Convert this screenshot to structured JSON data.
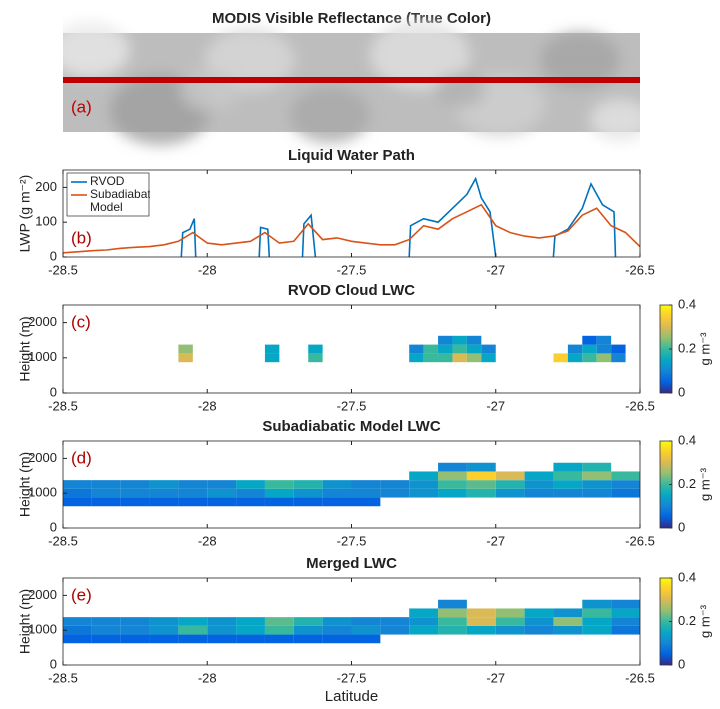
{
  "chart_data": [
    {
      "type": "image",
      "title": "MODIS Visible Reflectance (True Color)",
      "annotation": "(a)",
      "line_color": "#c00000"
    },
    {
      "type": "line",
      "title": "Liquid Water Path",
      "ylabel": "LWP (g m⁻²)",
      "annotation": "(b)",
      "legend": "upper left",
      "xlim": [
        -28.5,
        -26.5
      ],
      "xticks": [
        -28.5,
        -28,
        -27.5,
        -27,
        -26.5
      ],
      "ylim": [
        0,
        250
      ],
      "yticks": [
        0,
        100,
        200
      ],
      "series": [
        {
          "name": "RVOD",
          "color": "#0072bd",
          "x": [
            -28.09,
            -28.085,
            -28.06,
            -28.045,
            -28.04,
            -28.035,
            -27.82,
            -27.815,
            -27.79,
            -27.785,
            -27.78,
            -27.67,
            -27.665,
            -27.64,
            -27.625,
            -27.62,
            -27.3,
            -27.295,
            -27.25,
            -27.2,
            -27.15,
            -27.1,
            -27.07,
            -27.05,
            -27.02,
            -27.0,
            -26.99,
            -26.8,
            -26.795,
            -26.75,
            -26.7,
            -26.67,
            -26.63,
            -26.59,
            -26.585
          ],
          "values": [
            0,
            70,
            80,
            110,
            0,
            null,
            0,
            85,
            80,
            0,
            null,
            0,
            95,
            120,
            0,
            null,
            0,
            90,
            110,
            100,
            140,
            180,
            225,
            170,
            130,
            0,
            null,
            0,
            60,
            80,
            140,
            210,
            150,
            130,
            0
          ]
        },
        {
          "name": "Subadiabatic Model",
          "color": "#d95319",
          "x": [
            -28.5,
            -28.45,
            -28.4,
            -28.35,
            -28.3,
            -28.25,
            -28.2,
            -28.15,
            -28.1,
            -28.05,
            -28,
            -27.95,
            -27.9,
            -27.85,
            -27.8,
            -27.75,
            -27.7,
            -27.65,
            -27.6,
            -27.55,
            -27.5,
            -27.45,
            -27.4,
            -27.35,
            -27.3,
            -27.25,
            -27.2,
            -27.15,
            -27.1,
            -27.05,
            -27,
            -26.95,
            -26.9,
            -26.85,
            -26.8,
            -26.75,
            -26.7,
            -26.65,
            -26.6,
            -26.55,
            -26.5
          ],
          "values": [
            12,
            15,
            18,
            20,
            25,
            28,
            30,
            35,
            45,
            70,
            40,
            35,
            40,
            45,
            70,
            40,
            45,
            95,
            50,
            55,
            45,
            40,
            35,
            35,
            50,
            90,
            80,
            110,
            130,
            150,
            90,
            70,
            60,
            55,
            60,
            75,
            120,
            140,
            90,
            70,
            30
          ]
        }
      ]
    },
    {
      "type": "heatmap",
      "title": "RVOD Cloud LWC",
      "ylabel": "Height (m)",
      "annotation": "(c)",
      "colormap": "parula",
      "xlim": [
        -28.5,
        -26.5
      ],
      "xticks": [
        -28.5,
        -28,
        -27.5,
        -27,
        -26.5
      ],
      "ylim": [
        0,
        2500
      ],
      "yticks": [
        0,
        1000,
        2000
      ],
      "clim": [
        0,
        0.4
      ],
      "cticks": [
        0,
        0.2,
        0.4
      ],
      "colorbar_label": "g m⁻³",
      "xbins": [
        -28.5,
        -28.45,
        -28.4,
        -28.35,
        -28.3,
        -28.25,
        -28.2,
        -28.15,
        -28.1,
        -28.05,
        -28,
        -27.95,
        -27.9,
        -27.85,
        -27.8,
        -27.75,
        -27.7,
        -27.65,
        -27.6,
        -27.55,
        -27.5,
        -27.45,
        -27.4,
        -27.35,
        -27.3,
        -27.25,
        -27.2,
        -27.15,
        -27.1,
        -27.05,
        -27,
        -26.95,
        -26.9,
        -26.85,
        -26.8,
        -26.75,
        -26.7,
        -26.65,
        -26.6,
        -26.55,
        -26.5
      ],
      "ybins": [
        875,
        1125,
        1375,
        1625
      ],
      "values": [
        [
          null,
          null,
          null,
          null,
          null,
          null,
          null,
          null,
          0.3,
          null,
          null,
          null,
          null,
          null,
          0.15,
          null,
          null,
          0.2,
          null,
          null,
          null,
          null,
          null,
          null,
          0.15,
          0.2,
          0.2,
          0.3,
          0.25,
          0.15,
          null,
          null,
          null,
          null,
          0.35,
          0.15,
          0.2,
          0.25,
          0.1,
          null
        ],
        [
          null,
          null,
          null,
          null,
          null,
          null,
          null,
          null,
          0.25,
          null,
          null,
          null,
          null,
          null,
          0.15,
          null,
          null,
          0.15,
          null,
          null,
          null,
          null,
          null,
          null,
          0.1,
          0.2,
          0.15,
          0.2,
          0.15,
          0.1,
          null,
          null,
          null,
          null,
          null,
          0.1,
          0.15,
          0.1,
          0.05,
          null
        ],
        [
          null,
          null,
          null,
          null,
          null,
          null,
          null,
          null,
          null,
          null,
          null,
          null,
          null,
          null,
          null,
          null,
          null,
          null,
          null,
          null,
          null,
          null,
          null,
          null,
          null,
          null,
          0.1,
          0.15,
          0.1,
          null,
          null,
          null,
          null,
          null,
          null,
          null,
          0.05,
          0.1,
          null,
          null
        ]
      ]
    },
    {
      "type": "heatmap",
      "title": "Subadiabatic Model LWC",
      "ylabel": "Height (m)",
      "annotation": "(d)",
      "colormap": "parula",
      "xlim": [
        -28.5,
        -26.5
      ],
      "xticks": [
        -28.5,
        -28,
        -27.5,
        -27,
        -26.5
      ],
      "ylim": [
        0,
        2500
      ],
      "yticks": [
        0,
        1000,
        2000
      ],
      "clim": [
        0,
        0.4
      ],
      "cticks": [
        0,
        0.2,
        0.4
      ],
      "colorbar_label": "g m⁻³",
      "xbins": [
        -28.5,
        -28.4,
        -28.3,
        -28.2,
        -28.1,
        -28,
        -27.9,
        -27.8,
        -27.7,
        -27.6,
        -27.5,
        -27.4,
        -27.3,
        -27.2,
        -27.1,
        -27,
        -26.9,
        -26.8,
        -26.7,
        -26.6,
        -26.5
      ],
      "ybins": [
        625,
        875,
        1125,
        1375,
        1625,
        1875
      ],
      "values": [
        [
          0.05,
          0.05,
          0.05,
          0.05,
          0.05,
          0.05,
          0.05,
          0.05,
          0.05,
          0.05,
          0.05,
          null,
          null,
          null,
          null,
          null,
          null,
          null,
          null,
          null
        ],
        [
          0.08,
          0.1,
          0.1,
          0.1,
          0.1,
          0.12,
          0.1,
          0.15,
          0.12,
          0.1,
          0.1,
          0.1,
          0.12,
          0.15,
          0.18,
          0.12,
          0.1,
          0.1,
          0.1,
          0.08
        ],
        [
          0.1,
          0.1,
          0.1,
          0.12,
          0.1,
          0.1,
          0.15,
          0.2,
          0.18,
          0.12,
          0.1,
          0.1,
          0.12,
          0.2,
          0.22,
          0.18,
          0.12,
          0.15,
          0.12,
          0.1
        ],
        [
          null,
          null,
          null,
          null,
          null,
          null,
          null,
          null,
          null,
          null,
          null,
          null,
          0.15,
          0.25,
          0.35,
          0.3,
          0.15,
          0.2,
          0.25,
          0.2
        ],
        [
          null,
          null,
          null,
          null,
          null,
          null,
          null,
          null,
          null,
          null,
          null,
          null,
          null,
          0.1,
          0.12,
          null,
          null,
          0.15,
          0.18,
          null
        ]
      ]
    },
    {
      "type": "heatmap",
      "title": "Merged LWC",
      "ylabel": "Height (m)",
      "xlabel": "Latitude",
      "annotation": "(e)",
      "colormap": "parula",
      "xlim": [
        -28.5,
        -26.5
      ],
      "xticks": [
        -28.5,
        -28,
        -27.5,
        -27,
        -26.5
      ],
      "ylim": [
        0,
        2500
      ],
      "yticks": [
        0,
        1000,
        2000
      ],
      "clim": [
        0,
        0.4
      ],
      "cticks": [
        0,
        0.2,
        0.4
      ],
      "colorbar_label": "g m⁻³",
      "xbins": [
        -28.5,
        -28.4,
        -28.3,
        -28.2,
        -28.1,
        -28,
        -27.9,
        -27.8,
        -27.7,
        -27.6,
        -27.5,
        -27.4,
        -27.3,
        -27.2,
        -27.1,
        -27,
        -26.9,
        -26.8,
        -26.7,
        -26.6,
        -26.5
      ],
      "ybins": [
        625,
        875,
        1125,
        1375,
        1625,
        1875
      ],
      "values": [
        [
          0.05,
          0.05,
          0.05,
          0.05,
          0.05,
          0.05,
          0.05,
          0.05,
          0.05,
          0.05,
          0.05,
          null,
          null,
          null,
          null,
          null,
          null,
          null,
          null,
          null
        ],
        [
          0.08,
          0.1,
          0.1,
          0.12,
          0.2,
          0.12,
          0.15,
          0.2,
          0.12,
          0.1,
          0.12,
          0.1,
          0.15,
          0.18,
          0.15,
          0.12,
          0.1,
          0.12,
          0.15,
          0.08
        ],
        [
          0.1,
          0.1,
          0.1,
          0.12,
          0.15,
          0.12,
          0.15,
          0.22,
          0.18,
          0.12,
          0.1,
          0.1,
          0.12,
          0.2,
          0.3,
          0.2,
          0.12,
          0.25,
          0.15,
          0.1
        ],
        [
          null,
          null,
          null,
          null,
          null,
          null,
          null,
          null,
          null,
          null,
          null,
          null,
          0.15,
          0.25,
          0.3,
          0.25,
          0.15,
          0.12,
          0.2,
          0.15
        ],
        [
          null,
          null,
          null,
          null,
          null,
          null,
          null,
          null,
          null,
          null,
          null,
          null,
          null,
          0.1,
          null,
          null,
          null,
          null,
          0.12,
          0.1
        ]
      ]
    }
  ]
}
